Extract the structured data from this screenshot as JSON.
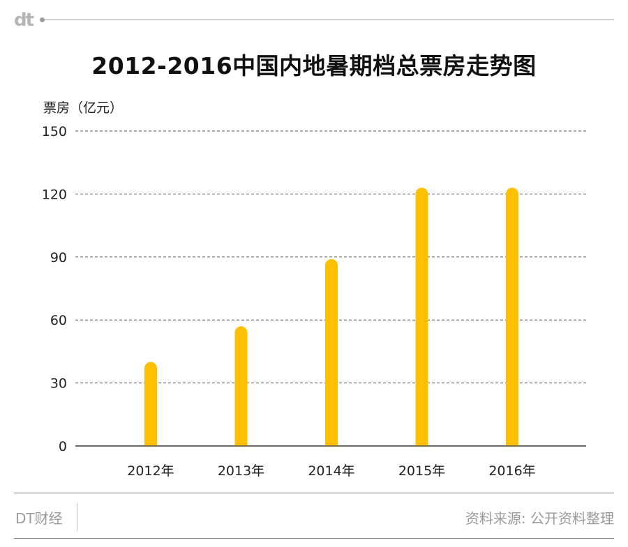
{
  "header": {
    "logo": "dt"
  },
  "footer": {
    "brand": "DT财经",
    "source": "资料来源: 公开资料整理"
  },
  "chart_data": {
    "type": "bar",
    "title": "2012-2016中国内地暑期档总票房走势图",
    "xlabel": "",
    "ylabel": "票房（亿元）",
    "categories": [
      "2012年",
      "2013年",
      "2014年",
      "2015年",
      "2016年"
    ],
    "values": [
      40,
      57,
      89,
      123,
      123
    ],
    "ylim": [
      0,
      150
    ],
    "yticks": [
      0,
      30,
      60,
      90,
      120,
      150
    ],
    "grid": true,
    "legend": "none",
    "colors": {
      "bar": "#FFC000",
      "grid": "#555555",
      "axis": "#555555"
    }
  }
}
